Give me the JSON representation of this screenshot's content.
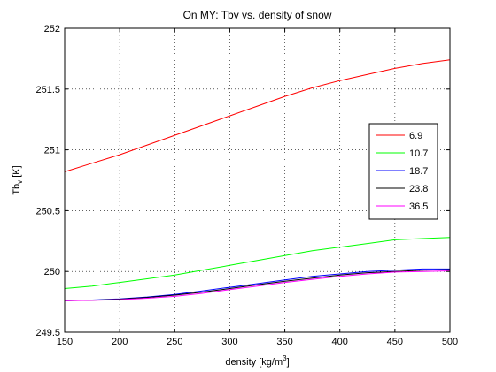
{
  "chart_data": {
    "type": "line",
    "title": "On MY: Tbv vs. density of snow",
    "xlabel_main": "density [kg/m",
    "xlabel_sup": "3",
    "xlabel_end": "]",
    "ylabel_main": "Tb",
    "ylabel_sub": "v",
    "ylabel_end": " [K]",
    "xlim": [
      150,
      500
    ],
    "ylim": [
      249.5,
      252
    ],
    "xticks": [
      150,
      200,
      250,
      300,
      350,
      400,
      450,
      500
    ],
    "yticks": [
      249.5,
      250,
      250.5,
      251,
      251.5,
      252
    ],
    "ytick_labels": [
      "249.5",
      "250",
      "250.5",
      "251",
      "251.5",
      "252"
    ],
    "grid": true,
    "legend_position": "right",
    "x": [
      150,
      175,
      200,
      225,
      250,
      275,
      300,
      325,
      350,
      375,
      400,
      425,
      450,
      475,
      500
    ],
    "series": [
      {
        "name": "6.9",
        "color": "#ff0000",
        "values": [
          250.82,
          250.89,
          250.96,
          251.04,
          251.12,
          251.2,
          251.28,
          251.36,
          251.44,
          251.51,
          251.57,
          251.62,
          251.67,
          251.71,
          251.74
        ]
      },
      {
        "name": "10.7",
        "color": "#00ff00",
        "values": [
          249.86,
          249.88,
          249.91,
          249.94,
          249.97,
          250.01,
          250.05,
          250.09,
          250.13,
          250.17,
          250.2,
          250.23,
          250.26,
          250.27,
          250.28
        ]
      },
      {
        "name": "18.7",
        "color": "#0000ff",
        "values": [
          249.76,
          249.765,
          249.775,
          249.79,
          249.81,
          249.84,
          249.87,
          249.9,
          249.93,
          249.96,
          249.98,
          250.0,
          250.01,
          250.02,
          250.02
        ]
      },
      {
        "name": "23.8",
        "color": "#000000",
        "values": [
          249.76,
          249.764,
          249.772,
          249.786,
          249.805,
          249.83,
          249.86,
          249.89,
          249.92,
          249.945,
          249.97,
          249.99,
          250.0,
          250.01,
          250.015
        ]
      },
      {
        "name": "36.5",
        "color": "#ff00ff",
        "values": [
          249.76,
          249.762,
          249.768,
          249.78,
          249.795,
          249.82,
          249.85,
          249.88,
          249.91,
          249.935,
          249.96,
          249.98,
          249.995,
          250.0,
          250.005
        ]
      }
    ]
  }
}
